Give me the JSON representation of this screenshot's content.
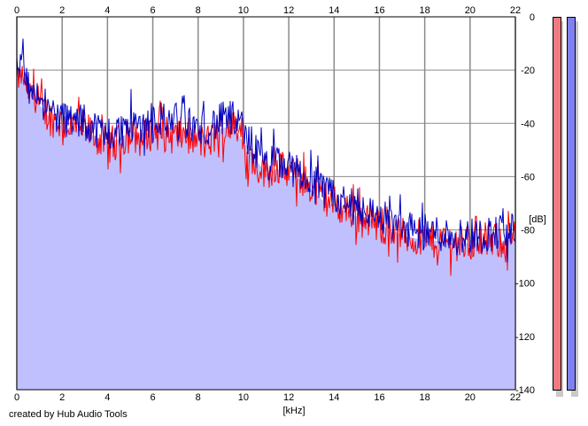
{
  "footer": {
    "credit": "created by Hub Audio Tools"
  },
  "meters": {
    "left_color": "#f07a80",
    "right_color": "#8080f0"
  },
  "chart_data": {
    "type": "line",
    "xlabel": "[kHz]",
    "ylabel": "[dB]",
    "xlim": [
      0,
      22
    ],
    "ylim": [
      -140,
      0
    ],
    "xticks": [
      0,
      2,
      4,
      6,
      8,
      10,
      12,
      14,
      16,
      18,
      20,
      22
    ],
    "yticks": [
      0,
      -20,
      -40,
      -60,
      -80,
      -100,
      -120,
      -140
    ],
    "grid": true,
    "fill_color": "#c0c0ff",
    "series": [
      {
        "color": "#ff0000",
        "x": [
          0,
          0.25,
          0.5,
          0.75,
          1,
          1.25,
          1.5,
          1.75,
          2,
          2.5,
          3,
          3.5,
          4,
          4.5,
          5,
          5.5,
          6,
          6.5,
          7,
          7.5,
          8,
          8.5,
          9,
          9.5,
          10,
          10.5,
          11,
          11.5,
          12,
          12.5,
          13,
          13.5,
          14,
          14.5,
          15,
          15.5,
          16,
          16.5,
          17,
          17.5,
          18,
          18.5,
          19,
          19.5,
          20,
          20.5,
          21,
          21.5,
          22
        ],
        "y": [
          -24,
          -22,
          -28,
          -30,
          -34,
          -36,
          -38,
          -39,
          -40,
          -41,
          -42,
          -45,
          -48,
          -47,
          -44,
          -46,
          -43,
          -44,
          -45,
          -44,
          -47,
          -47,
          -42,
          -41,
          -48,
          -55,
          -58,
          -56,
          -59,
          -60,
          -64,
          -67,
          -70,
          -72,
          -74,
          -75,
          -78,
          -80,
          -82,
          -83,
          -83,
          -84,
          -84,
          -85,
          -85,
          -84,
          -84,
          -84,
          -83
        ]
      },
      {
        "color": "#0000c0",
        "x": [
          0,
          0.25,
          0.5,
          0.75,
          1,
          1.25,
          1.5,
          1.75,
          2,
          2.5,
          3,
          3.5,
          4,
          4.5,
          5,
          5.5,
          6,
          6.5,
          7,
          7.5,
          8,
          8.5,
          9,
          9.5,
          10,
          10.5,
          11,
          11.5,
          12,
          12.5,
          13,
          13.5,
          14,
          14.5,
          15,
          15.5,
          16,
          16.5,
          17,
          17.5,
          18,
          18.5,
          19,
          19.5,
          20,
          20.5,
          21,
          21.5,
          22
        ],
        "y": [
          -20,
          -18,
          -25,
          -27,
          -30,
          -33,
          -35,
          -37,
          -38,
          -39,
          -40,
          -42,
          -44,
          -43,
          -40,
          -41,
          -37,
          -39,
          -38,
          -40,
          -42,
          -41,
          -39,
          -38,
          -44,
          -50,
          -56,
          -54,
          -57,
          -58,
          -62,
          -66,
          -68,
          -70,
          -72,
          -73,
          -75,
          -77,
          -79,
          -80,
          -81,
          -81,
          -82,
          -82,
          -82,
          -82,
          -81,
          -81,
          -80
        ]
      }
    ]
  }
}
